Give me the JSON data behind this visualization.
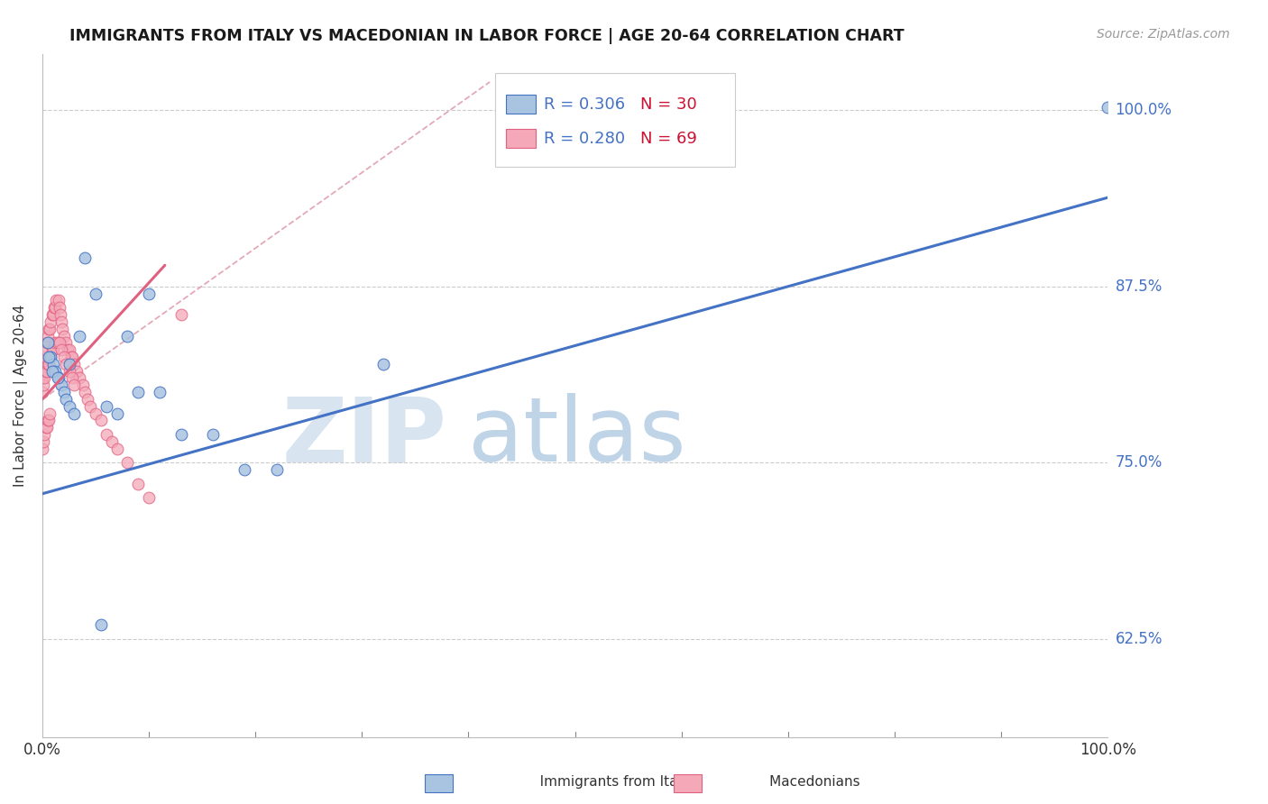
{
  "title": "IMMIGRANTS FROM ITALY VS MACEDONIAN IN LABOR FORCE | AGE 20-64 CORRELATION CHART",
  "source": "Source: ZipAtlas.com",
  "ylabel": "In Labor Force | Age 20-64",
  "xlim": [
    0.0,
    1.0
  ],
  "ylim": [
    0.555,
    1.04
  ],
  "yticks": [
    0.625,
    0.75,
    0.875,
    1.0
  ],
  "ytick_labels": [
    "62.5%",
    "75.0%",
    "87.5%",
    "100.0%"
  ],
  "color_italy": "#a8c4e0",
  "color_mac": "#f4a8b8",
  "color_italy_line": "#4472c4",
  "color_mac_line": "#e06080",
  "color_diag": "#e0a0b0",
  "italy_x": [
    0.005,
    0.008,
    0.01,
    0.012,
    0.015,
    0.018,
    0.02,
    0.022,
    0.025,
    0.03,
    0.035,
    0.04,
    0.05,
    0.06,
    0.07,
    0.08,
    0.09,
    0.1,
    0.11,
    0.13,
    0.16,
    0.19,
    0.22,
    0.32,
    0.006,
    0.009,
    0.014,
    0.025,
    0.055,
    1.0
  ],
  "italy_y": [
    0.835,
    0.825,
    0.82,
    0.815,
    0.81,
    0.805,
    0.8,
    0.795,
    0.79,
    0.785,
    0.84,
    0.895,
    0.87,
    0.79,
    0.785,
    0.84,
    0.8,
    0.87,
    0.8,
    0.77,
    0.77,
    0.745,
    0.745,
    0.82,
    0.825,
    0.815,
    0.81,
    0.82,
    0.635,
    1.002
  ],
  "mac_x_main": [
    0.0,
    0.001,
    0.002,
    0.003,
    0.004,
    0.005,
    0.006,
    0.007,
    0.008,
    0.009,
    0.01,
    0.011,
    0.012,
    0.013,
    0.015,
    0.016,
    0.017,
    0.018,
    0.019,
    0.02,
    0.022,
    0.024,
    0.025,
    0.027,
    0.028,
    0.03,
    0.032,
    0.035,
    0.038,
    0.04,
    0.042,
    0.045,
    0.05,
    0.055,
    0.06,
    0.065,
    0.07,
    0.08,
    0.09,
    0.1,
    0.0,
    0.001,
    0.002,
    0.003,
    0.004,
    0.005,
    0.006,
    0.007,
    0.008,
    0.009,
    0.01,
    0.012,
    0.014,
    0.016,
    0.018,
    0.02,
    0.022,
    0.025,
    0.028,
    0.03,
    0.0,
    0.001,
    0.002,
    0.003,
    0.004,
    0.005,
    0.006,
    0.007,
    0.13
  ],
  "mac_y_main": [
    0.81,
    0.82,
    0.825,
    0.83,
    0.835,
    0.84,
    0.845,
    0.845,
    0.85,
    0.855,
    0.855,
    0.86,
    0.86,
    0.865,
    0.865,
    0.86,
    0.855,
    0.85,
    0.845,
    0.84,
    0.835,
    0.83,
    0.83,
    0.825,
    0.825,
    0.82,
    0.815,
    0.81,
    0.805,
    0.8,
    0.795,
    0.79,
    0.785,
    0.78,
    0.77,
    0.765,
    0.76,
    0.75,
    0.735,
    0.725,
    0.8,
    0.805,
    0.81,
    0.815,
    0.815,
    0.82,
    0.82,
    0.825,
    0.825,
    0.83,
    0.83,
    0.835,
    0.835,
    0.835,
    0.83,
    0.825,
    0.82,
    0.815,
    0.81,
    0.805,
    0.76,
    0.765,
    0.77,
    0.775,
    0.775,
    0.78,
    0.78,
    0.785,
    0.855
  ],
  "blue_line_x": [
    0.0,
    1.0
  ],
  "blue_line_y": [
    0.728,
    0.938
  ],
  "pink_line_x": [
    0.0,
    0.115
  ],
  "pink_line_y": [
    0.795,
    0.89
  ],
  "diag_line_x": [
    0.0,
    0.42
  ],
  "diag_line_y": [
    0.795,
    1.02
  ],
  "watermark_zip_color": "#d8e4f0",
  "watermark_atlas_color": "#c0d4e8"
}
